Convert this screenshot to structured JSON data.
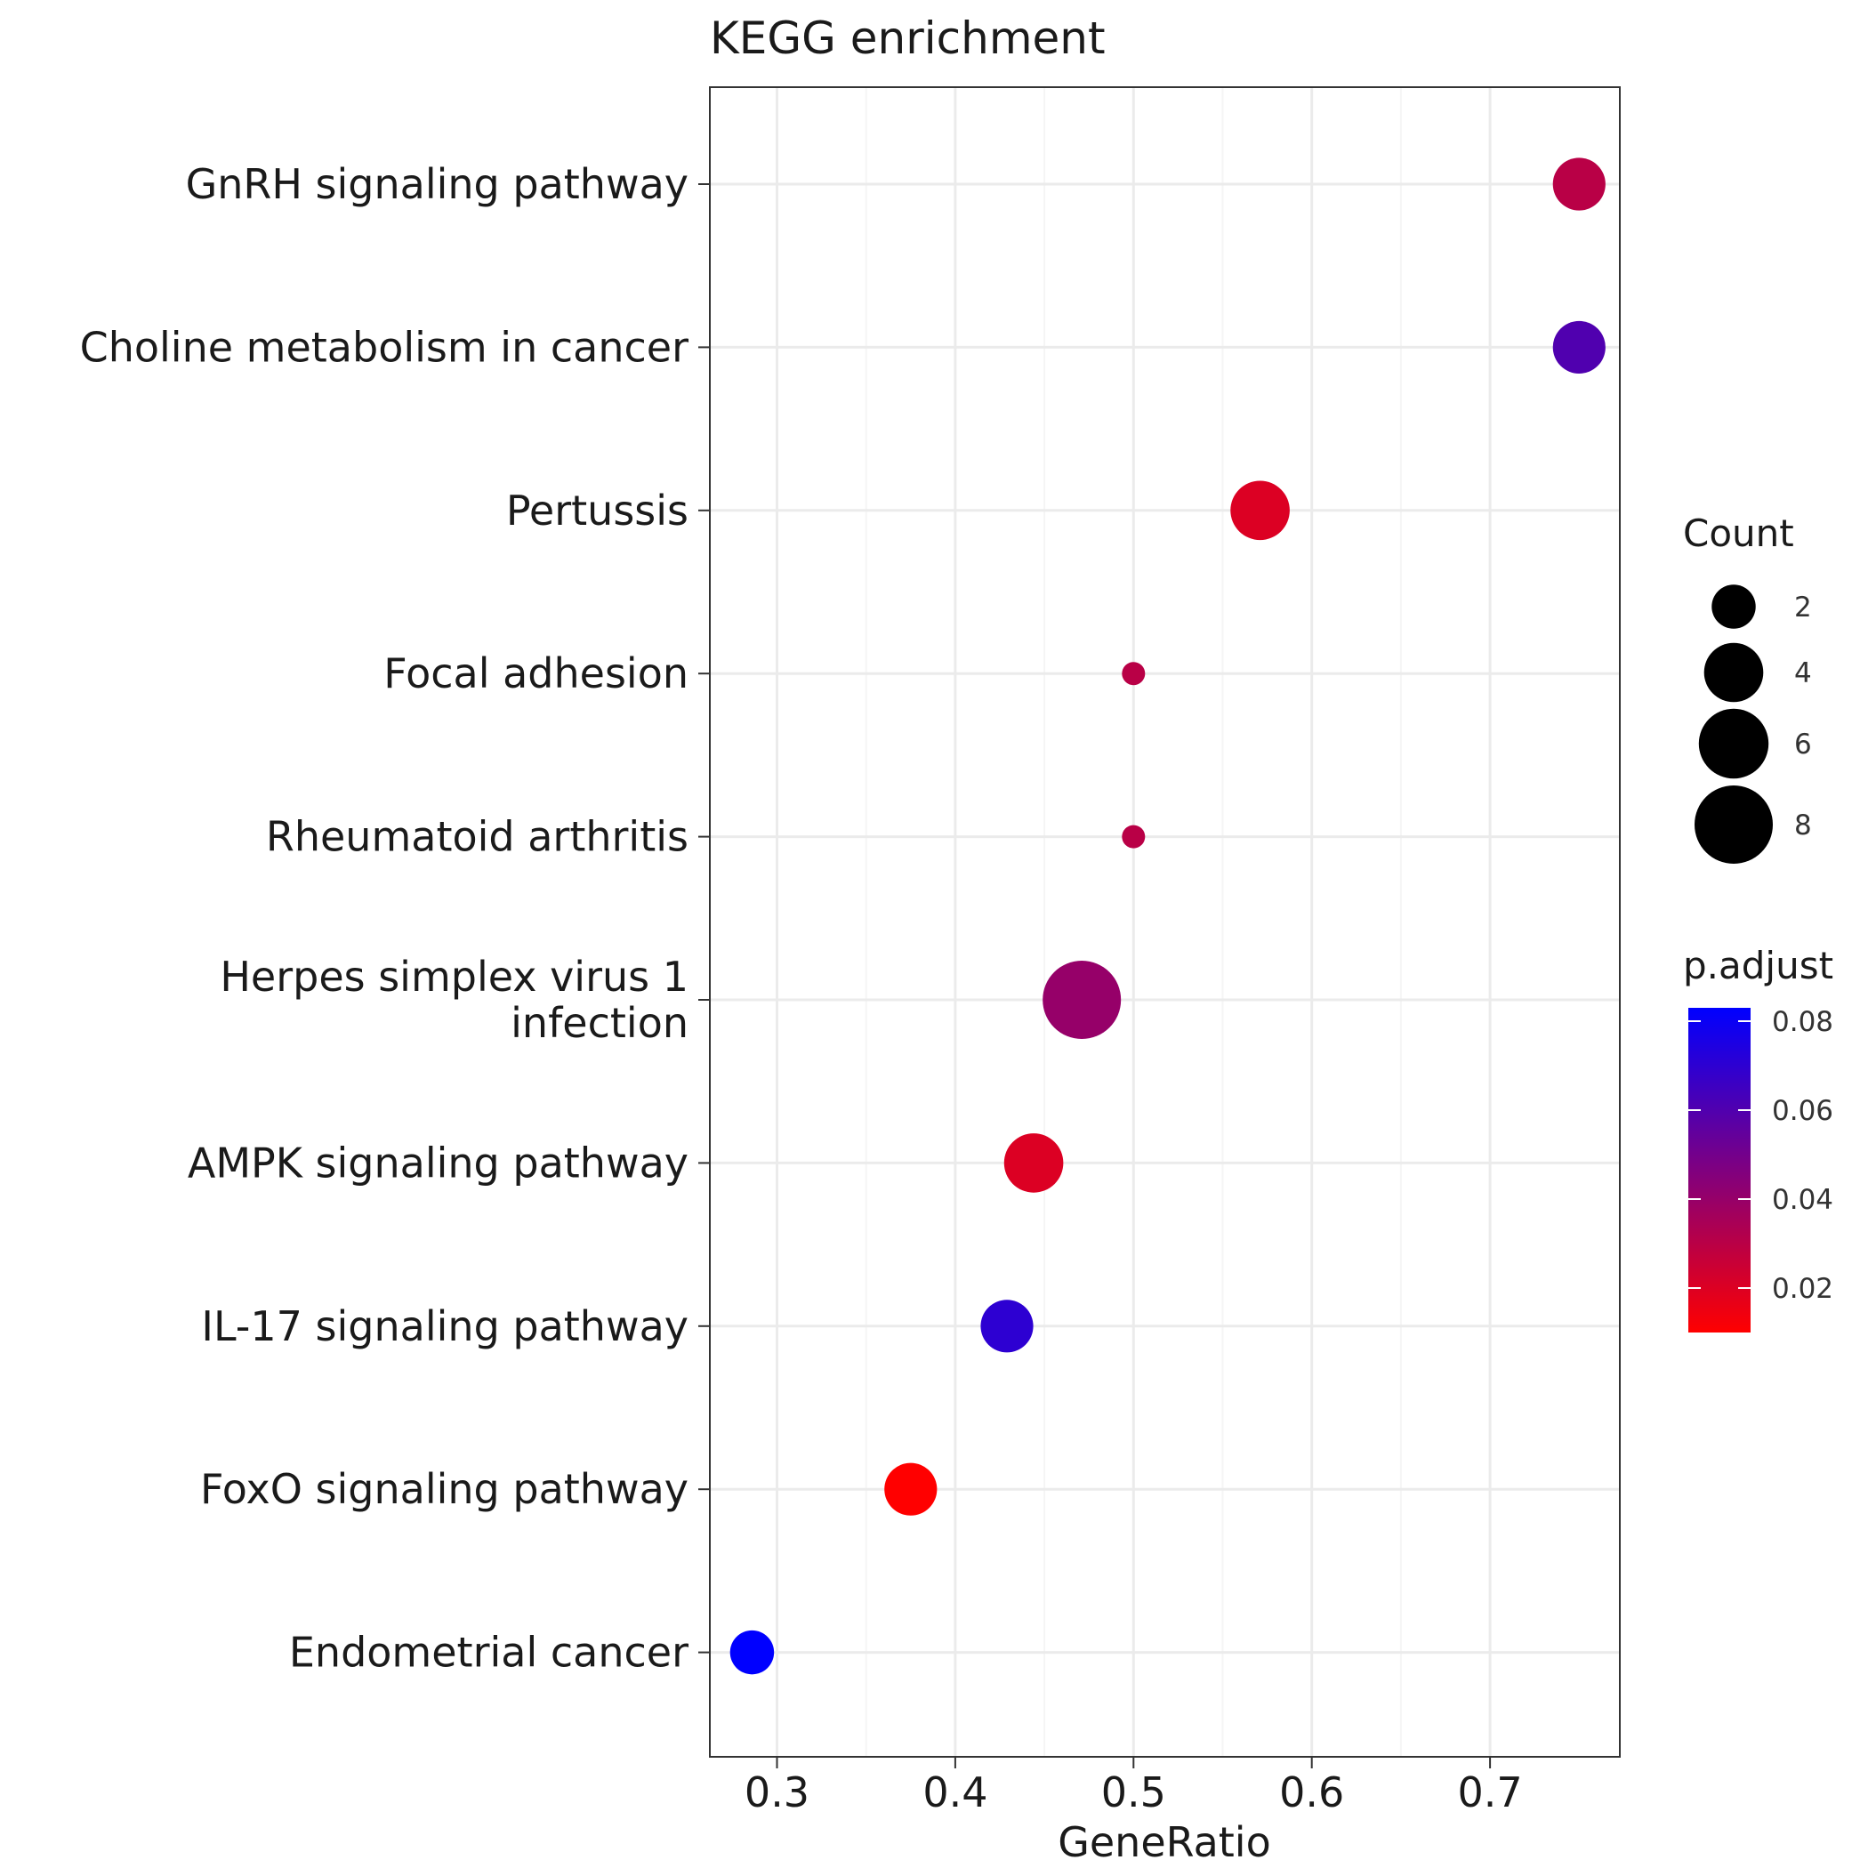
{
  "chart_data": {
    "type": "scatter",
    "title": "KEGG enrichment",
    "xlabel": "GeneRatio",
    "ylabel": "",
    "xlim": [
      0.263,
      0.772
    ],
    "xticks": [
      0.3,
      0.4,
      0.5,
      0.6,
      0.7
    ],
    "xtick_labels": [
      "0.3",
      "0.4",
      "0.5",
      "0.6",
      "0.7"
    ],
    "grid": true,
    "points": [
      {
        "term": "GnRH signaling pathway",
        "label_lines": [
          "GnRH signaling pathway"
        ],
        "gene_ratio": 0.75,
        "count": 3,
        "p_adjust": 0.03
      },
      {
        "term": "Choline metabolism in cancer",
        "label_lines": [
          "Choline metabolism in cancer"
        ],
        "gene_ratio": 0.75,
        "count": 3,
        "p_adjust": 0.06
      },
      {
        "term": "Pertussis",
        "label_lines": [
          "Pertussis"
        ],
        "gene_ratio": 0.571,
        "count": 4,
        "p_adjust": 0.02
      },
      {
        "term": "Focal adhesion",
        "label_lines": [
          "Focal adhesion"
        ],
        "gene_ratio": 0.5,
        "count": 1,
        "p_adjust": 0.03
      },
      {
        "term": "Rheumatoid arthritis",
        "label_lines": [
          "Rheumatoid arthritis"
        ],
        "gene_ratio": 0.5,
        "count": 1,
        "p_adjust": 0.03
      },
      {
        "term": "Herpes simplex virus 1 infection",
        "label_lines": [
          "Herpes simplex virus 1",
          "infection"
        ],
        "gene_ratio": 0.471,
        "count": 8,
        "p_adjust": 0.04
      },
      {
        "term": "AMPK signaling pathway",
        "label_lines": [
          "AMPK signaling pathway"
        ],
        "gene_ratio": 0.444,
        "count": 4,
        "p_adjust": 0.02
      },
      {
        "term": "IL-17 signaling pathway",
        "label_lines": [
          "IL-17 signaling pathway"
        ],
        "gene_ratio": 0.429,
        "count": 3,
        "p_adjust": 0.07
      },
      {
        "term": "FoxO signaling pathway",
        "label_lines": [
          "FoxO signaling pathway"
        ],
        "gene_ratio": 0.375,
        "count": 3,
        "p_adjust": 0.01
      },
      {
        "term": "Endometrial cancer",
        "label_lines": [
          "Endometrial cancer"
        ],
        "gene_ratio": 0.286,
        "count": 2,
        "p_adjust": 0.083
      }
    ],
    "size_legend": {
      "title": "Count",
      "entries": [
        {
          "value": 2,
          "label": "2"
        },
        {
          "value": 4,
          "label": "4"
        },
        {
          "value": 6,
          "label": "6"
        },
        {
          "value": 8,
          "label": "8"
        }
      ]
    },
    "color_legend": {
      "title": "p.adjust",
      "range": [
        0.01,
        0.083
      ],
      "low_color": "#ff0000",
      "high_color": "#0000ff",
      "ticks": [
        {
          "value": 0.08,
          "label": "0.08"
        },
        {
          "value": 0.06,
          "label": "0.06"
        },
        {
          "value": 0.04,
          "label": "0.04"
        },
        {
          "value": 0.02,
          "label": "0.02"
        }
      ]
    },
    "colors": {
      "grid_major": "#ebebeb",
      "grid_minor": "#f5f5f5",
      "panel_border": "#333333",
      "point_default": "#000000"
    }
  }
}
